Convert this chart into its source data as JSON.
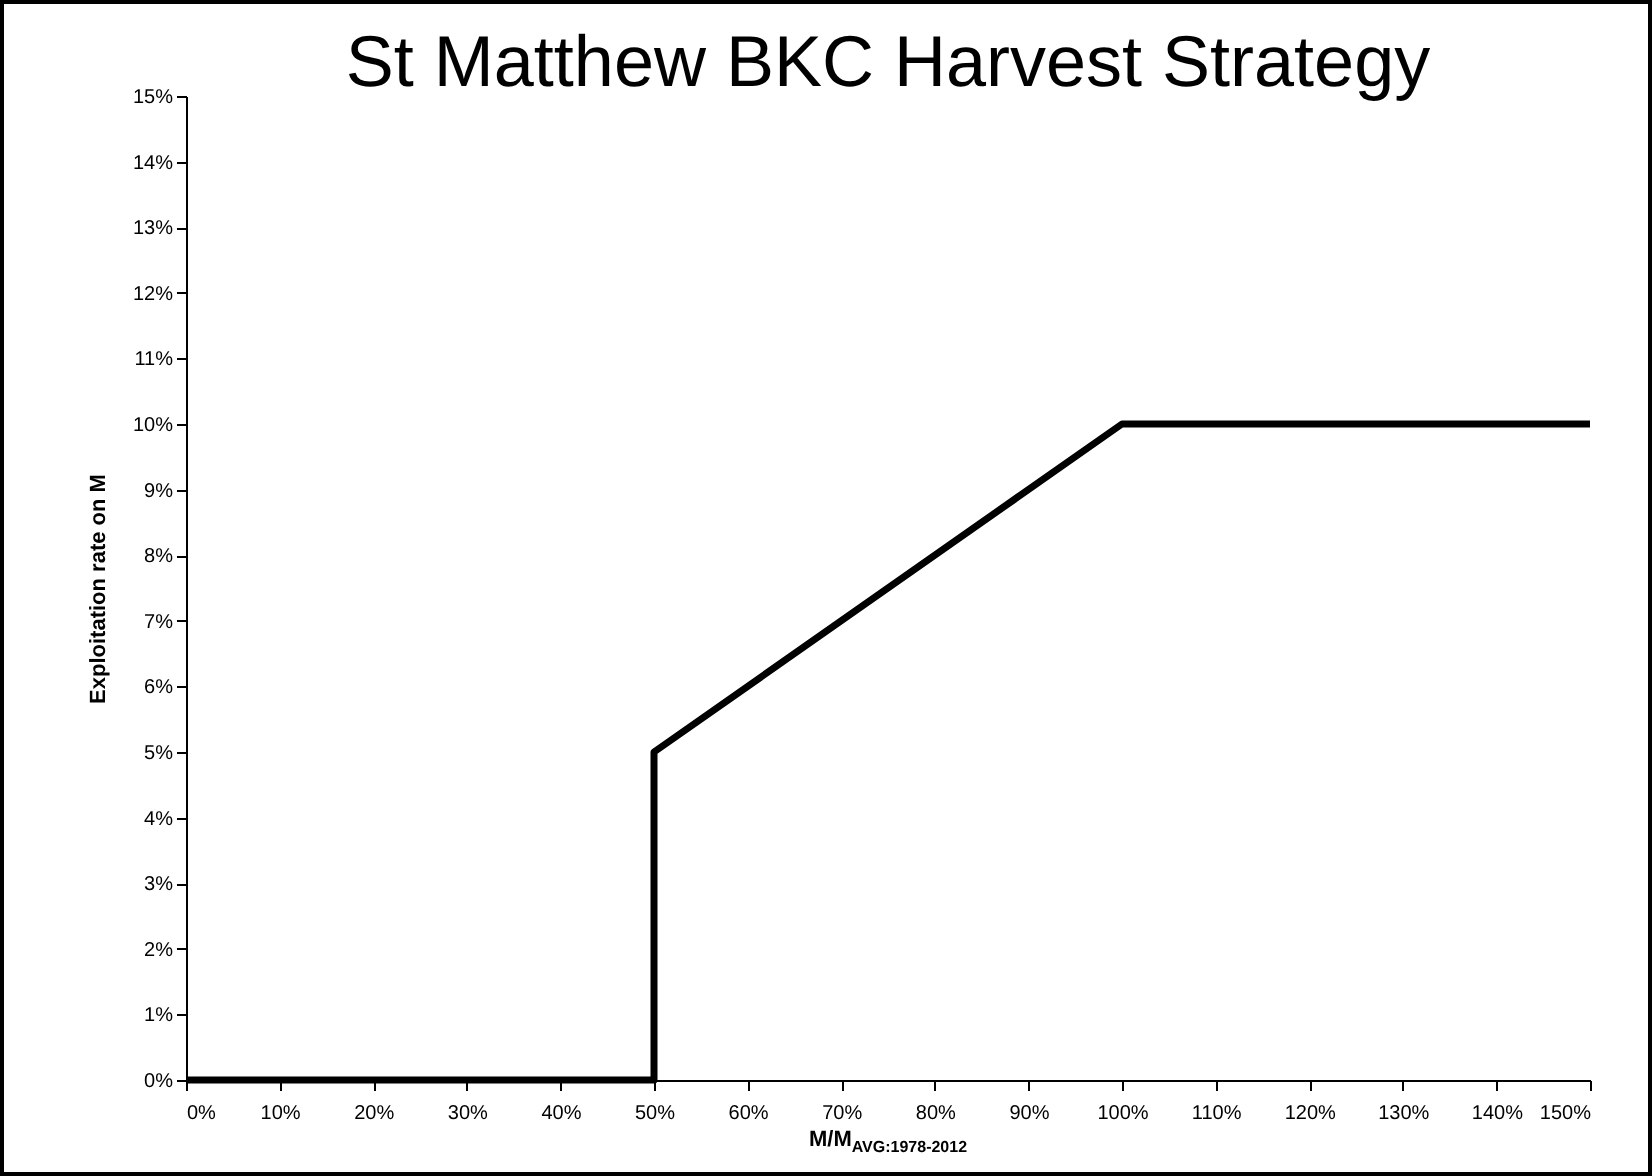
{
  "chart_data": {
    "type": "line",
    "title": "St Matthew BKC Harvest Strategy",
    "xlabel": "M/M$_{AVG:1978-2012}$",
    "ylabel": "Exploitation rate on M",
    "x": [
      0,
      50,
      50,
      100,
      150
    ],
    "series": [
      {
        "color": "#000000",
        "values": [
          0,
          0,
          5,
          10,
          10
        ]
      }
    ],
    "xlim": [
      0,
      150
    ],
    "xticks": [
      {
        "value": 0,
        "label": "0%"
      },
      {
        "value": 10,
        "label": "10%"
      },
      {
        "value": 20,
        "label": "20%"
      },
      {
        "value": 30,
        "label": "30%"
      },
      {
        "value": 40,
        "label": "40%"
      },
      {
        "value": 50,
        "label": "50%"
      },
      {
        "value": 60,
        "label": "60%"
      },
      {
        "value": 70,
        "label": "70%"
      },
      {
        "value": 80,
        "label": "80%"
      },
      {
        "value": 90,
        "label": "90%"
      },
      {
        "value": 100,
        "label": "100%"
      },
      {
        "value": 110,
        "label": "110%"
      },
      {
        "value": 120,
        "label": "120%"
      },
      {
        "value": 130,
        "label": "130%"
      },
      {
        "value": 140,
        "label": "140%"
      },
      {
        "value": 150,
        "label": "150%"
      }
    ],
    "ylim": [
      0,
      15
    ],
    "yticks": [
      {
        "value": 0,
        "label": "0%"
      },
      {
        "value": 1,
        "label": "1%"
      },
      {
        "value": 2,
        "label": "2%"
      },
      {
        "value": 3,
        "label": "3%"
      },
      {
        "value": 4,
        "label": "4%"
      },
      {
        "value": 5,
        "label": "5%"
      },
      {
        "value": 6,
        "label": "6%"
      },
      {
        "value": 7,
        "label": "7%"
      },
      {
        "value": 8,
        "label": "8%"
      },
      {
        "value": 9,
        "label": "9%"
      },
      {
        "value": 10,
        "label": "10%"
      },
      {
        "value": 11,
        "label": "11%"
      },
      {
        "value": 12,
        "label": "12%"
      },
      {
        "value": 13,
        "label": "13%"
      },
      {
        "value": 14,
        "label": "14%"
      },
      {
        "value": 15,
        "label": "15%"
      }
    ]
  }
}
